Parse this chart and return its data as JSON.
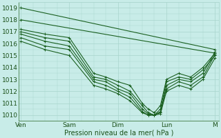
{
  "title": "",
  "xlabel": "Pression niveau de la mer( hPa )",
  "ylabel": "",
  "bg_color": "#c8ece8",
  "grid_color": "#a8d4cc",
  "line_color": "#1a6020",
  "ylim": [
    1009.5,
    1019.5
  ],
  "yticks": [
    1010,
    1011,
    1012,
    1013,
    1014,
    1015,
    1016,
    1017,
    1018,
    1019
  ],
  "x_day_labels": [
    "Ven",
    "Sam",
    "Dim",
    "Lun",
    "M"
  ],
  "x_day_positions": [
    0,
    24,
    48,
    72,
    96
  ],
  "xlim": [
    -1,
    98
  ],
  "series": [
    {
      "x": [
        0,
        96
      ],
      "y": [
        1019.0,
        1015.5
      ]
    },
    {
      "x": [
        0,
        96
      ],
      "y": [
        1018.0,
        1015.2
      ]
    },
    {
      "x": [
        0,
        12,
        24,
        36,
        42,
        48,
        54,
        60,
        63,
        66,
        69,
        72,
        78,
        84,
        90,
        96
      ],
      "y": [
        1017.2,
        1016.8,
        1016.5,
        1013.5,
        1013.2,
        1012.8,
        1012.5,
        1011.0,
        1010.5,
        1010.2,
        1010.8,
        1013.0,
        1013.5,
        1013.2,
        1014.0,
        1015.2
      ]
    },
    {
      "x": [
        0,
        12,
        24,
        36,
        42,
        48,
        54,
        60,
        63,
        66,
        69,
        72,
        78,
        84,
        90,
        96
      ],
      "y": [
        1017.0,
        1016.5,
        1016.2,
        1013.2,
        1013.0,
        1012.5,
        1012.0,
        1010.8,
        1010.2,
        1010.0,
        1010.5,
        1012.8,
        1013.2,
        1013.0,
        1013.8,
        1015.0
      ]
    },
    {
      "x": [
        0,
        12,
        24,
        36,
        42,
        48,
        54,
        60,
        63,
        66,
        69,
        72,
        78,
        84,
        90,
        96
      ],
      "y": [
        1016.8,
        1016.2,
        1015.8,
        1013.0,
        1012.8,
        1012.2,
        1011.8,
        1010.5,
        1010.1,
        1010.0,
        1010.2,
        1012.5,
        1013.0,
        1012.8,
        1013.5,
        1015.3
      ]
    },
    {
      "x": [
        0,
        12,
        24,
        36,
        42,
        48,
        54,
        60,
        63,
        66,
        69,
        72,
        78,
        84,
        90,
        96
      ],
      "y": [
        1016.5,
        1015.8,
        1015.5,
        1012.8,
        1012.5,
        1012.0,
        1011.5,
        1010.3,
        1010.0,
        1010.0,
        1010.3,
        1012.2,
        1012.8,
        1012.5,
        1013.2,
        1015.1
      ]
    },
    {
      "x": [
        0,
        12,
        24,
        36,
        42,
        48,
        54,
        60,
        63,
        66,
        69,
        72,
        78,
        84,
        90,
        96
      ],
      "y": [
        1016.2,
        1015.5,
        1015.0,
        1012.5,
        1012.2,
        1011.8,
        1011.2,
        1010.2,
        1010.0,
        1010.0,
        1010.1,
        1012.0,
        1012.5,
        1012.2,
        1013.0,
        1014.8
      ]
    }
  ]
}
